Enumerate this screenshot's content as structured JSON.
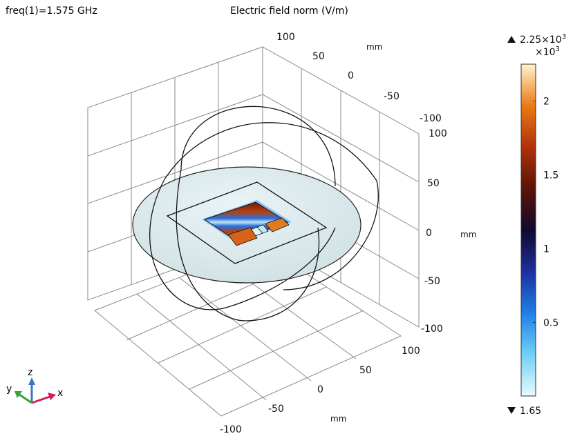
{
  "chart_data": {
    "type": "surface-3d",
    "title": "Electric field norm (V/m)",
    "parameter_label": "freq(1)=1.575 GHz",
    "axis_unit": "mm",
    "axis_ticks": {
      "x": [
        "100",
        "50",
        "0",
        "-50",
        "-100"
      ],
      "y": [
        "100",
        "50",
        "0",
        "-50",
        "-100"
      ],
      "z": [
        "100",
        "50",
        "0",
        "-50",
        "-100"
      ]
    },
    "axis_range": [
      -100,
      100
    ],
    "colorbar": {
      "max_label": "2.25×10",
      "max_exp": "3",
      "multiplier_label": "×10",
      "multiplier_exp": "3",
      "min_label": "1.65",
      "ticks": [
        "2",
        "1.5",
        "1",
        "0.5"
      ],
      "tick_values": [
        2,
        1.5,
        1,
        0.5
      ],
      "min": 0.00165,
      "max": 2.25,
      "colors": [
        "#e6fbff",
        "#6fd0f5",
        "#1f7fe6",
        "#1e2f9e",
        "#12082e",
        "#5a1408",
        "#b0320a",
        "#ea7b16",
        "#fff4cf"
      ]
    },
    "triad": {
      "x": "x",
      "y": "y",
      "z": "z",
      "x_color": "#d0205a",
      "y_color": "#3aa13a",
      "z_color": "#3b76c4"
    }
  }
}
